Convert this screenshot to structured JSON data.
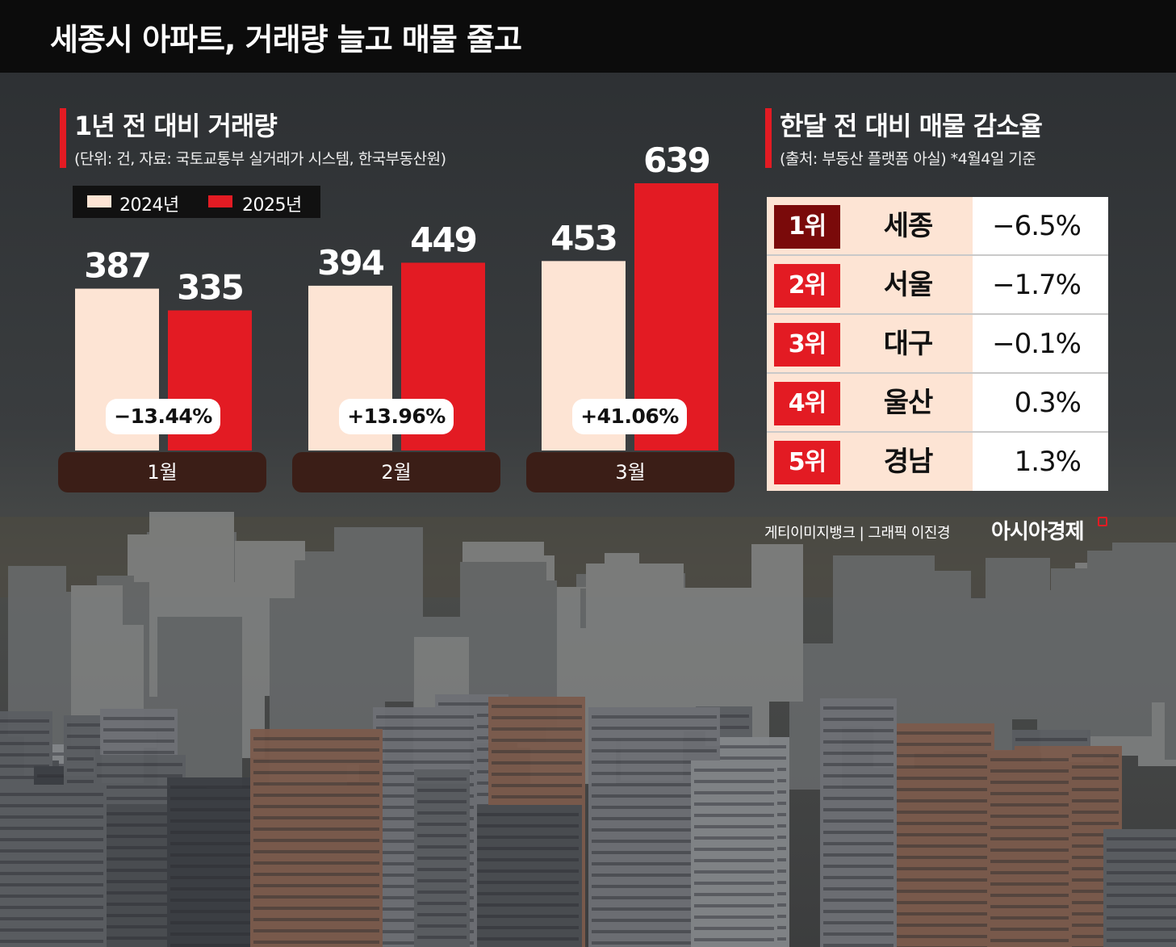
{
  "header": {
    "title": "세종시 아파트, 거래량 늘고 매물 줄고"
  },
  "left_section": {
    "title": "1년 전 대비 거래량",
    "subtitle": "(단위: 건, 자료: 국토교통부 실거래가 시스템, 한국부동산원)"
  },
  "right_section": {
    "title": "한달 전 대비 매물 감소율",
    "subtitle": "(출처: 부동산 플랫폼 아실)  *4월4일 기준"
  },
  "colors": {
    "series_2024": "#fde4d4",
    "series_2025": "#e31b23",
    "rank1_badge": "#7a0a0a",
    "rank_badge": "#e31b23",
    "month_pill": "#3b1e17"
  },
  "chart_data": {
    "type": "bar",
    "categories": [
      "1월",
      "2월",
      "3월"
    ],
    "series": [
      {
        "name": "2024년",
        "values": [
          387,
          394,
          453
        ]
      },
      {
        "name": "2025년",
        "values": [
          335,
          449,
          639
        ]
      }
    ],
    "change_labels": [
      "−13.44%",
      "+13.96%",
      "+41.06%"
    ],
    "ylim": [
      0,
      700
    ],
    "legend": "top-left",
    "grid": false
  },
  "ranking": {
    "rows": [
      {
        "rank": "1위",
        "region": "세종",
        "value": "−6.5%"
      },
      {
        "rank": "2위",
        "region": "서울",
        "value": "−1.7%"
      },
      {
        "rank": "3위",
        "region": "대구",
        "value": "−0.1%"
      },
      {
        "rank": "4위",
        "region": "울산",
        "value": "0.3%"
      },
      {
        "rank": "5위",
        "region": "경남",
        "value": "1.3%"
      }
    ]
  },
  "footer": {
    "credit": "게티이미지뱅크 | 그래픽 이진경",
    "brand": "아시아경제"
  }
}
